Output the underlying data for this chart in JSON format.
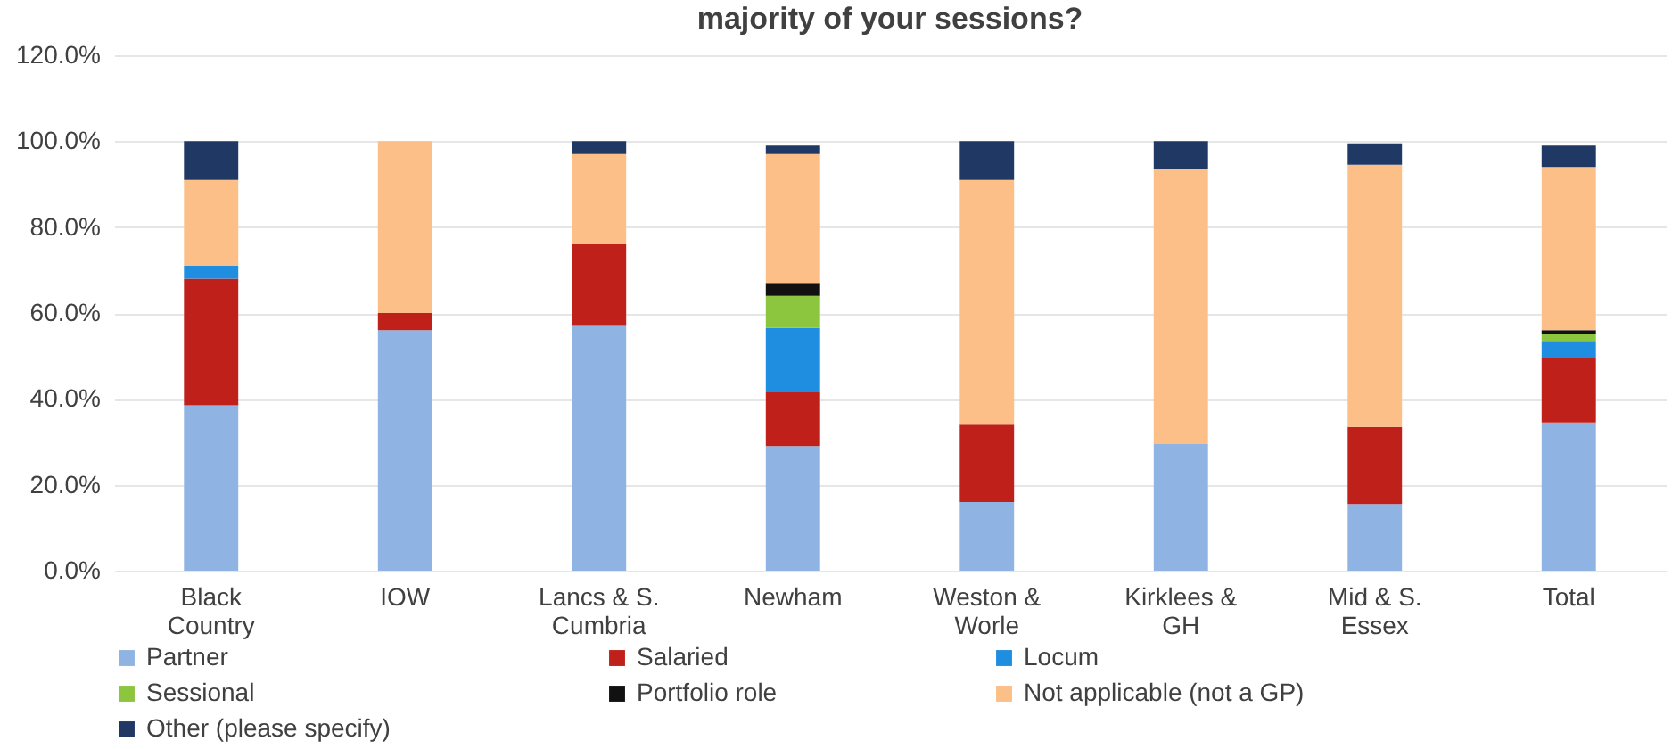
{
  "chart_data": {
    "type": "bar",
    "title": "majority of your sessions?",
    "stacked": true,
    "grid": "y",
    "legend": "bottom",
    "categories": [
      "Black Country",
      "IOW",
      "Lancs & S. Cumbria",
      "Newham",
      "Weston & Worle",
      "Kirklees & GH",
      "Mid & S. Essex",
      "Total"
    ],
    "ylim": [
      0,
      120
    ],
    "yticks": [
      {
        "value": 0,
        "label": "0.0%"
      },
      {
        "value": 20,
        "label": "20.0%"
      },
      {
        "value": 40,
        "label": "40.0%"
      },
      {
        "value": 60,
        "label": "60.0%"
      },
      {
        "value": 80,
        "label": "80.0%"
      },
      {
        "value": 100,
        "label": "100.0%"
      },
      {
        "value": 120,
        "label": "120.0%"
      }
    ],
    "series": [
      {
        "name": "Partner",
        "color": "#8fb4e3",
        "values": [
          38.5,
          56,
          57,
          29,
          16,
          29.5,
          15.5,
          34.5
        ]
      },
      {
        "name": "Salaried",
        "color": "#c0201a",
        "values": [
          29.5,
          4,
          19,
          12.5,
          18,
          0,
          18,
          15
        ]
      },
      {
        "name": "Locum",
        "color": "#1f8ee0",
        "values": [
          3,
          0,
          0,
          15,
          0,
          0,
          0,
          4
        ]
      },
      {
        "name": "Sessional",
        "color": "#8cc63f",
        "values": [
          0,
          0,
          0,
          7.5,
          0,
          0,
          0,
          1.5
        ]
      },
      {
        "name": "Portfolio role",
        "color": "#111111",
        "values": [
          0,
          0,
          0,
          3,
          0,
          0,
          0,
          1
        ]
      },
      {
        "name": "Not applicable (not a GP)",
        "color": "#fbbf87",
        "values": [
          20,
          40,
          21,
          30,
          57,
          64,
          61,
          38
        ]
      },
      {
        "name": "Other (please specify)",
        "color": "#1f3864",
        "values": [
          9,
          0,
          3,
          2,
          9,
          6.5,
          5,
          5
        ]
      }
    ]
  }
}
